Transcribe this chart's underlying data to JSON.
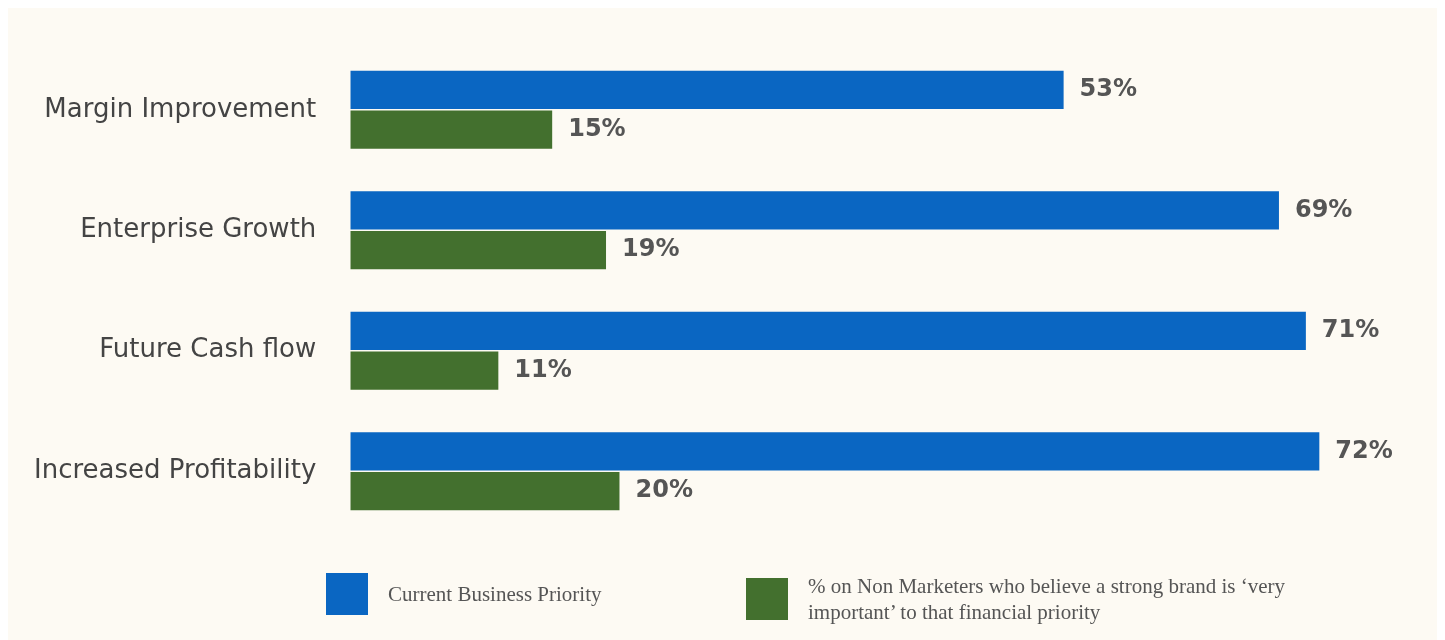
{
  "chart_data": {
    "type": "bar",
    "orientation": "horizontal",
    "categories": [
      "Margin Improvement",
      "Enterprise Growth",
      "Future Cash flow",
      "Increased Profitability"
    ],
    "series": [
      {
        "name": "Current Business Priority",
        "color": "#0a66c2",
        "values": [
          53,
          69,
          71,
          72
        ],
        "value_labels": [
          "53%",
          "69%",
          "71%",
          "72%"
        ]
      },
      {
        "name": "% on Non Marketers who believe a strong brand is ‘very important’ to that financial priority",
        "color": "#43702e",
        "values": [
          15,
          19,
          11,
          20
        ],
        "value_labels": [
          "15%",
          "19%",
          "11%",
          "20%"
        ]
      }
    ],
    "legend": "bottom left"
  }
}
